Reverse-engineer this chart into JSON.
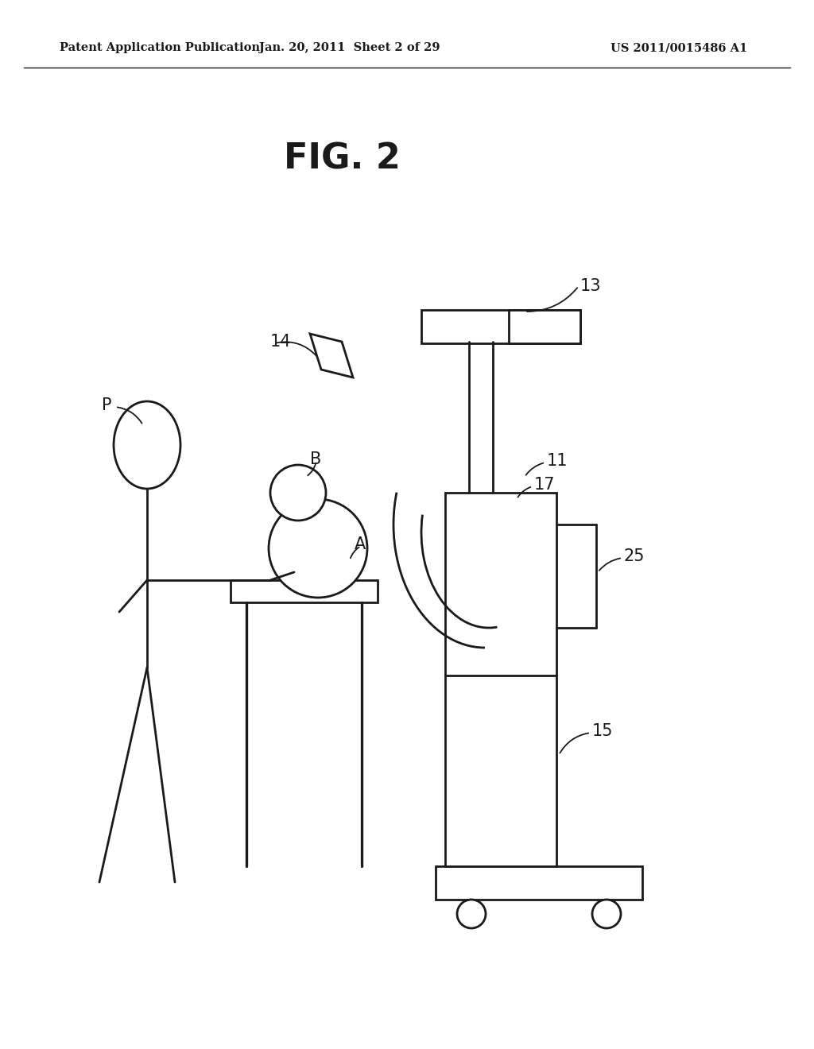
{
  "bg_color": "#ffffff",
  "header_left": "Patent Application Publication",
  "header_center": "Jan. 20, 2011  Sheet 2 of 29",
  "header_right": "US 2011/0015486 A1",
  "fig_label": "FIG. 2",
  "line_color": "#1a1a1a",
  "text_color": "#1a1a1a",
  "lw": 2.0,
  "header_fontsize": 10.5,
  "fig_fontsize": 32,
  "label_fontsize": 15
}
